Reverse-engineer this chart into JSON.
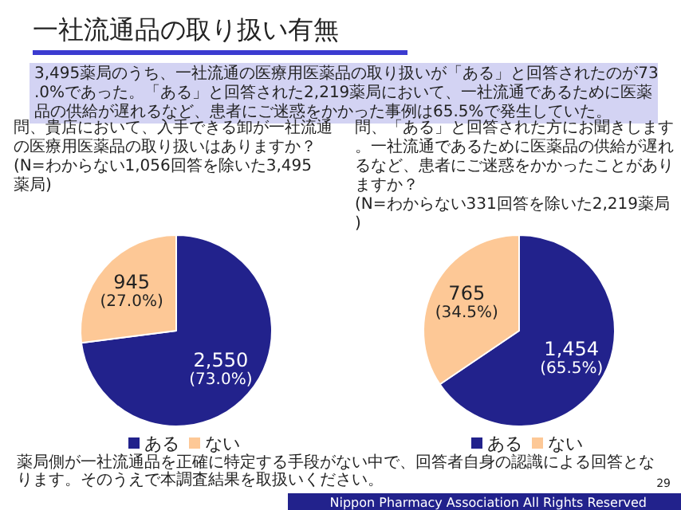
{
  "chart_data": [
    {
      "type": "other",
      "title": "一社流通品の取り扱い有無",
      "subtitle": "3,495薬局のうち、一社流通の医療用医薬品の取り扱いが「ある」と回答されたのが73.0%であった。「ある」と回答された2,219薬局において、一社流通であるために医薬品の供給が遅れるなど、患者にご迷惑をかかった事例は65.5%で発生していた。",
      "annotations": [
        "薬局側が一社流通品を正確に特定する手段がない中で、回答者自身の認識による回答となります。そのうえで本調査結果を取扱いください。",
        "Nippon Pharmacy Association All Rights Reserved",
        "29"
      ]
    },
    {
      "type": "pie",
      "title": "問、貴店において、入手できる卸が一社流通の医療用医薬品の取り扱いはありますか？",
      "subtitle": "(N=わからない1,056回答を除いた3,495薬局)",
      "categories": [
        "ある",
        "ない"
      ],
      "values": [
        2550,
        945
      ],
      "colors": [
        "#22228c",
        "#fdc896"
      ],
      "value_labels": [
        "2,550\n(73.0%)",
        "945\n(27.0%)"
      ],
      "legend": "bottom"
    },
    {
      "type": "pie",
      "title": "問、「ある」と回答された方にお聞きします。一社流通であるために医薬品の供給が遅れるなど、患者にご迷惑をかかったことがありますか？",
      "subtitle": "(N=わからない331回答を除いた2,219薬局)",
      "categories": [
        "ある",
        "ない"
      ],
      "values": [
        1454,
        765
      ],
      "colors": [
        "#22228c",
        "#fdc896"
      ],
      "value_labels": [
        "1,454\n(65.5%)",
        "765\n(34.5%)"
      ],
      "legend": "bottom"
    }
  ]
}
